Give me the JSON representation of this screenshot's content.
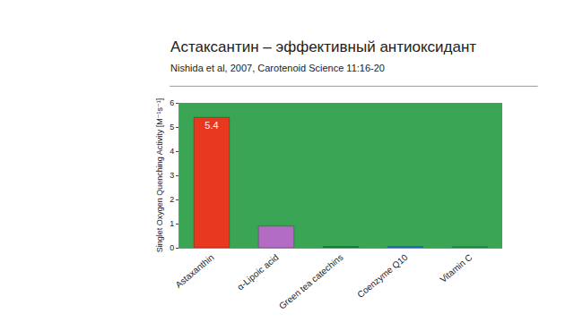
{
  "chart_data": {
    "type": "bar",
    "title": "Астаксантин – эффективный антиоксидант",
    "subtitle": "Nishida et al, 2007, Carotenoid Science 11:16-20",
    "y_label": "Singlet Oxygen Quenching Activity [M⁻¹s⁻¹]",
    "categories": [
      "Astaxanthin",
      "α-Lipoic acid",
      "Green tea catechins",
      "Coenzyme Q10",
      "Vitamin C"
    ],
    "values": [
      5.4,
      0.9,
      0.05,
      0.05,
      0.04
    ],
    "value_labels": [
      "5.4",
      null,
      null,
      null,
      null
    ],
    "data_labels": true,
    "colors": [
      "#e8381f",
      "#b36cc4",
      "#1d8a3c",
      "#2b7cc9",
      "#25a552"
    ],
    "ylim": [
      0,
      6
    ],
    "yticks": [
      0,
      1,
      2,
      3,
      4,
      5,
      6
    ],
    "grid": false
  }
}
